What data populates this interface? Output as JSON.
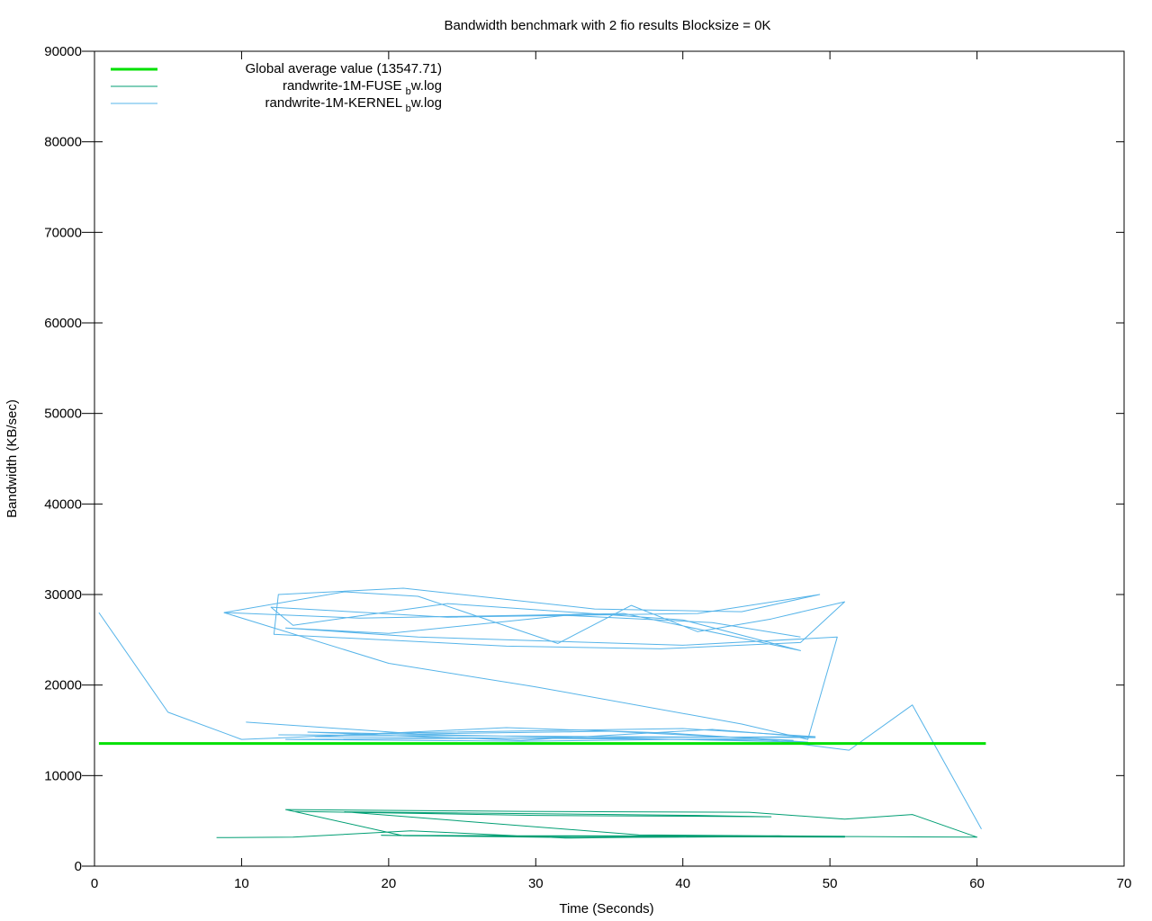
{
  "chart_data": {
    "type": "line",
    "title": "Bandwidth benchmark with 2 fio results  Blocksize = 0K",
    "xlabel": "Time (Seconds)",
    "ylabel": "Bandwidth (KB/sec)",
    "xlim": [
      0,
      70
    ],
    "ylim": [
      0,
      90000
    ],
    "x_ticks": [
      0,
      10,
      20,
      30,
      40,
      50,
      60,
      70
    ],
    "y_ticks": [
      0,
      10000,
      20000,
      30000,
      40000,
      50000,
      60000,
      70000,
      80000,
      90000
    ],
    "x_tick_labels": [
      "0",
      "10",
      "20",
      "30",
      "40",
      "50",
      "60",
      "70"
    ],
    "y_tick_labels": [
      "0",
      "10000",
      "20000",
      "30000",
      "40000",
      "50000",
      "60000",
      "70000",
      "80000",
      "90000"
    ],
    "grid": false,
    "legend_position": "top-left",
    "legend": [
      {
        "label": "Global average value (13547.71)",
        "color": "#00e000"
      },
      {
        "label_main": "randwrite-1M-FUSE",
        "label_sub": "b",
        "label_tail": "w.log",
        "color": "#009e73"
      },
      {
        "label_main": "randwrite-1M-KERNEL",
        "label_sub": "b",
        "label_tail": "w.log",
        "color": "#56b4e9"
      }
    ],
    "series": [
      {
        "name": "Global average value (13547.71)",
        "color": "#00e000",
        "width": 3,
        "x": [
          0.3,
          60.6
        ],
        "y": [
          13547.71,
          13547.71
        ]
      },
      {
        "name": "randwrite-1M-FUSE bw.log",
        "color": "#009e73",
        "width": 1,
        "x": [
          8.3,
          13.5,
          21.5,
          32.0,
          46.5,
          51.0,
          41.0,
          21.0,
          13.0,
          29.0,
          44.5,
          51.0,
          55.6,
          60.0,
          48.0,
          19.5,
          33.0,
          51.0,
          37.0,
          17.0,
          41.0,
          46.0,
          30.0,
          13.5
        ],
        "y": [
          3150,
          3200,
          3900,
          3100,
          3350,
          3200,
          3250,
          3350,
          6250,
          6050,
          5950,
          5200,
          5700,
          3200,
          3300,
          3400,
          3150,
          3300,
          3450,
          6000,
          5600,
          5450,
          5600,
          6050
        ]
      },
      {
        "name": "randwrite-1M-KERNEL bw.log",
        "color": "#56b4e9",
        "width": 1,
        "x": [
          0.3,
          5.0,
          10.0,
          13.0,
          20.0,
          40.0,
          49.0,
          13.0,
          29.0,
          45.0,
          51.3,
          55.6,
          60.3
        ],
        "y": [
          28000,
          17000,
          14000,
          14200,
          14700,
          15200,
          14300,
          14000,
          13800,
          14100,
          12800,
          17800,
          4100
        ]
      },
      {
        "name": "randwrite-1M-KERNEL bw.log",
        "color": "#56b4e9",
        "width": 1,
        "x": [
          10.3,
          22.0,
          35.0,
          47.5,
          15.0,
          28.0,
          39.0,
          48.5,
          14.5,
          29.0,
          42.0,
          49.0,
          12.5
        ],
        "y": [
          15900,
          14600,
          14900,
          13900,
          14300,
          15300,
          14700,
          13700,
          14800,
          13900,
          15100,
          14200,
          14500
        ]
      },
      {
        "name": "randwrite-1M-KERNEL bw.log",
        "color": "#56b4e9",
        "width": 1,
        "x": [
          8.8,
          17.0,
          22.0,
          31.5,
          36.5,
          41.0,
          46.0,
          51.0,
          48.0,
          38.5,
          28.0,
          12.2,
          12.5,
          21.0,
          34.0,
          44.0,
          49.3,
          41.0,
          24.0,
          12.0,
          13.5,
          24.0,
          40.0,
          48.0,
          36.0,
          18.0,
          8.8
        ],
        "y": [
          28000,
          30300,
          29800,
          24600,
          28800,
          25900,
          27300,
          29200,
          24700,
          24000,
          24300,
          25600,
          30000,
          30700,
          28400,
          28100,
          30000,
          27900,
          27500,
          28600,
          26600,
          29000,
          27200,
          23800,
          27900,
          27400,
          28000
        ]
      },
      {
        "name": "randwrite-1M-KERNEL bw.log",
        "color": "#56b4e9",
        "width": 1,
        "x": [
          8.8,
          20.0,
          30.0,
          44.0,
          48.5,
          50.5,
          40.0,
          22.0,
          13.0,
          20.0,
          32.0,
          42.0,
          48.0
        ],
        "y": [
          28000,
          22400,
          19800,
          15700,
          14000,
          25300,
          24400,
          25300,
          26300,
          25700,
          27700,
          26900,
          25300
        ]
      }
    ]
  }
}
